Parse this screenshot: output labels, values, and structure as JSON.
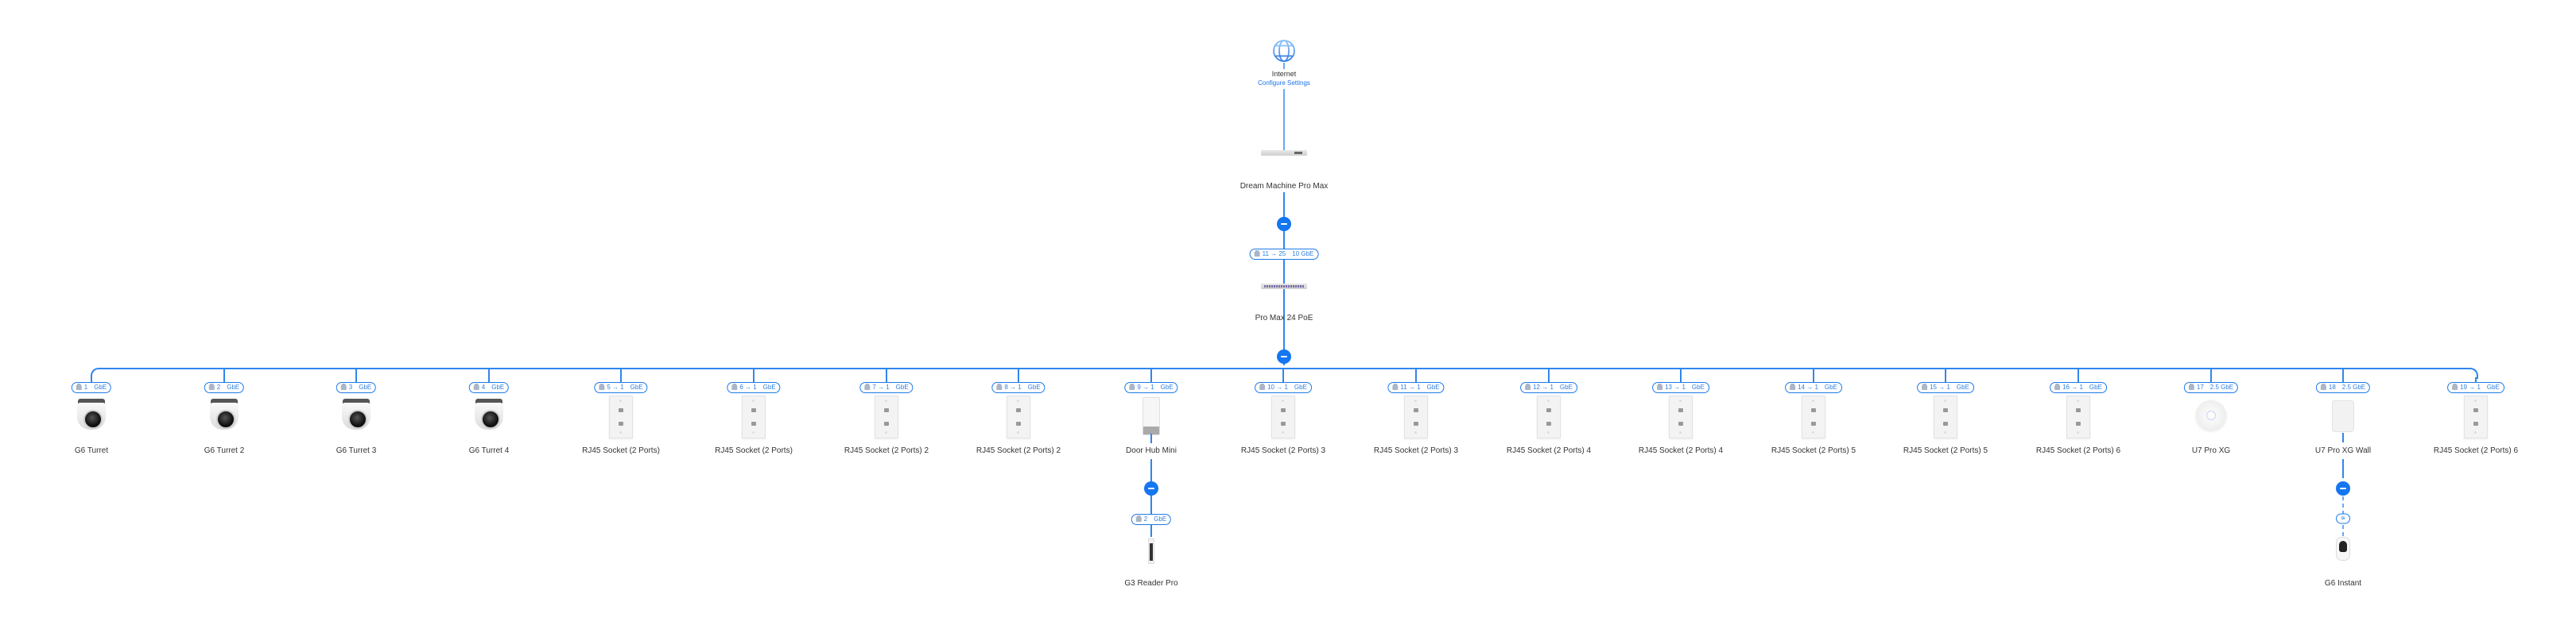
{
  "colors": {
    "accent": "#1476f0",
    "link_line": "#6aa8f2",
    "bus_line": "#2f86ee"
  },
  "internet": {
    "label": "Internet",
    "configure_link": "Configure Settings",
    "icon": "globe-icon"
  },
  "gateway": {
    "label": "Dream Machine Pro Max",
    "icon": "router-icon"
  },
  "uplink_badge": {
    "port": "11 → 25",
    "speed": "10 GbE"
  },
  "switch": {
    "label": "Pro Max 24 PoE",
    "icon": "switch-icon"
  },
  "devices": [
    {
      "name": "G6 Turret",
      "type": "turret",
      "port": "1",
      "speed": "GbE"
    },
    {
      "name": "G6 Turret 2",
      "type": "turret",
      "port": "2",
      "speed": "GbE"
    },
    {
      "name": "G6 Turret 3",
      "type": "turret",
      "port": "3",
      "speed": "GbE"
    },
    {
      "name": "G6 Turret 4",
      "type": "turret",
      "port": "4",
      "speed": "GbE"
    },
    {
      "name": "RJ45 Socket (2 Ports)",
      "type": "socket",
      "port": "5 → 1",
      "speed": "GbE"
    },
    {
      "name": "RJ45 Socket (2 Ports)",
      "type": "socket",
      "port": "6 → 1",
      "speed": "GbE"
    },
    {
      "name": "RJ45 Socket (2 Ports) 2",
      "type": "socket",
      "port": "7 → 1",
      "speed": "GbE"
    },
    {
      "name": "RJ45 Socket (2 Ports) 2",
      "type": "socket",
      "port": "8 → 1",
      "speed": "GbE"
    },
    {
      "name": "Door Hub Mini",
      "type": "hub",
      "port": "9 → 1",
      "speed": "GbE",
      "child": {
        "name": "G3 Reader Pro",
        "type": "reader",
        "port": "2",
        "speed": "GbE",
        "wired": true
      }
    },
    {
      "name": "RJ45 Socket (2 Ports) 3",
      "type": "socket",
      "port": "10 → 1",
      "speed": "GbE"
    },
    {
      "name": "RJ45 Socket (2 Ports) 3",
      "type": "socket",
      "port": "11 → 1",
      "speed": "GbE"
    },
    {
      "name": "RJ45 Socket (2 Ports) 4",
      "type": "socket",
      "port": "12 → 1",
      "speed": "GbE"
    },
    {
      "name": "RJ45 Socket (2 Ports) 4",
      "type": "socket",
      "port": "13 → 1",
      "speed": "GbE"
    },
    {
      "name": "RJ45 Socket (2 Ports) 5",
      "type": "socket",
      "port": "14 → 1",
      "speed": "GbE"
    },
    {
      "name": "RJ45 Socket (2 Ports) 5",
      "type": "socket",
      "port": "15 → 1",
      "speed": "GbE"
    },
    {
      "name": "RJ45 Socket (2 Ports) 6",
      "type": "socket",
      "port": "16 → 1",
      "speed": "GbE"
    },
    {
      "name": "U7 Pro XG",
      "type": "ap",
      "port": "17",
      "speed": "2.5 GbE"
    },
    {
      "name": "U7 Pro XG Wall",
      "type": "wallap",
      "port": "18",
      "speed": "2.5 GbE",
      "child": {
        "name": "G6 Instant",
        "type": "instant",
        "wired": false,
        "link_icon": "wifi-icon"
      }
    },
    {
      "name": "RJ45 Socket (2 Ports) 6",
      "type": "socket",
      "port": "19 → 1",
      "speed": "GbE"
    }
  ]
}
